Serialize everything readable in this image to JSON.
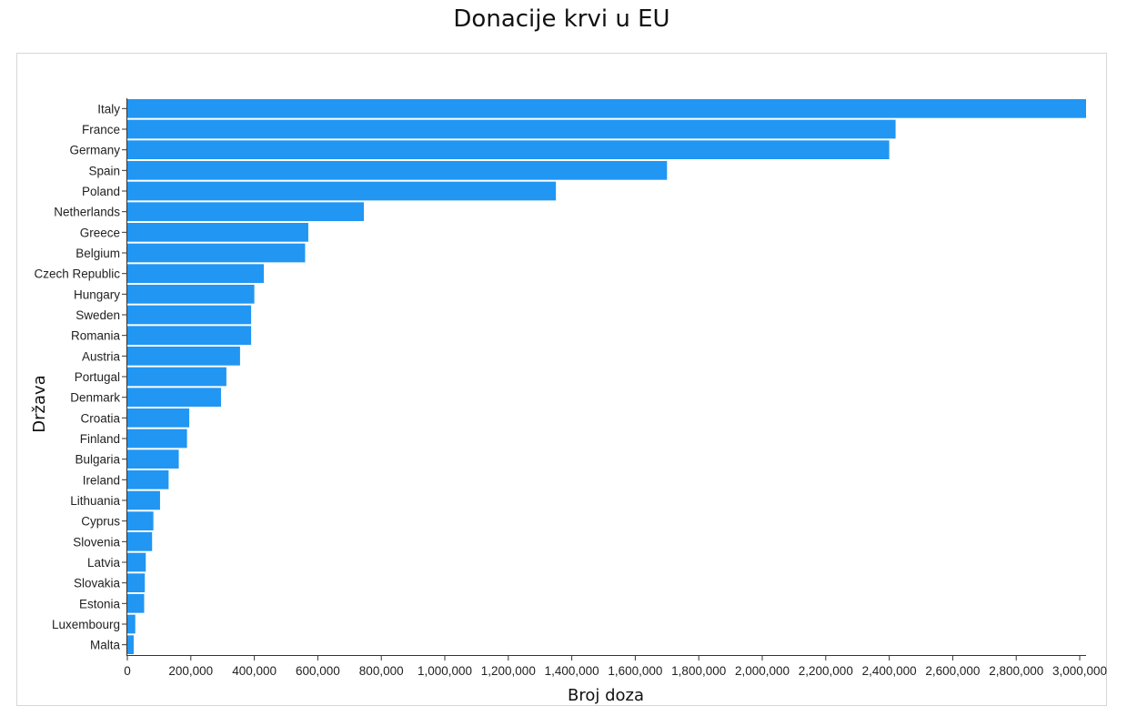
{
  "chart_data": {
    "type": "bar",
    "orientation": "horizontal",
    "title": "Donacije krvi u EU",
    "xlabel": "Broj doza",
    "ylabel": "Država",
    "xlim": [
      0,
      3020000
    ],
    "bar_color": "#2196f3",
    "grid": false,
    "x_ticks": [
      0,
      200000,
      400000,
      600000,
      800000,
      1000000,
      1200000,
      1400000,
      1600000,
      1800000,
      2000000,
      2200000,
      2400000,
      2600000,
      2800000,
      3000000
    ],
    "x_tick_labels": [
      "0",
      "200,000",
      "400,000",
      "600,000",
      "800,000",
      "1,000,000",
      "1,200,000",
      "1,400,000",
      "1,600,000",
      "1,800,000",
      "2,000,000",
      "2,200,000",
      "2,400,000",
      "2,600,000",
      "2,800,000",
      "3,000,000"
    ],
    "categories": [
      "Italy",
      "France",
      "Germany",
      "Spain",
      "Poland",
      "Netherlands",
      "Greece",
      "Belgium",
      "Czech Republic",
      "Hungary",
      "Sweden",
      "Romania",
      "Austria",
      "Portugal",
      "Denmark",
      "Croatia",
      "Finland",
      "Bulgaria",
      "Ireland",
      "Lithuania",
      "Cyprus",
      "Slovenia",
      "Latvia",
      "Slovakia",
      "Estonia",
      "Luxembourg",
      "Malta"
    ],
    "values": [
      3020000,
      2420000,
      2400000,
      1700000,
      1350000,
      745000,
      570000,
      560000,
      430000,
      400000,
      390000,
      390000,
      355000,
      312000,
      295000,
      195000,
      188000,
      162000,
      130000,
      103000,
      82000,
      78000,
      58000,
      55000,
      53000,
      25000,
      20000
    ]
  }
}
